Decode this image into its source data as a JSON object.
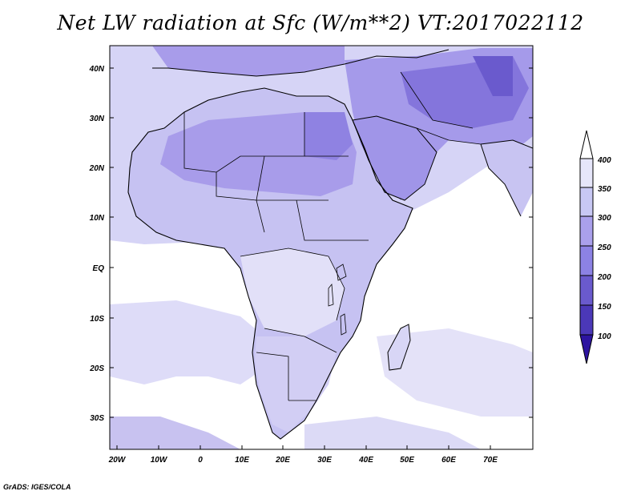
{
  "title": "Net LW radiation at Sfc (W/m**2) VT:2017022112",
  "credit": "GrADS: IGES/COLA",
  "x_axis": {
    "labels": [
      "20W",
      "10W",
      "0",
      "10E",
      "20E",
      "30E",
      "40E",
      "50E",
      "60E",
      "70E"
    ]
  },
  "y_axis": {
    "labels": [
      "40N",
      "30N",
      "20N",
      "10N",
      "EQ",
      "10S",
      "20S",
      "30S"
    ]
  },
  "colorbar": {
    "labels": [
      "400",
      "350",
      "300",
      "250",
      "200",
      "150",
      "100"
    ],
    "colors": [
      "#ffffff",
      "#e6e6fa",
      "#c8c8f4",
      "#aaa0ec",
      "#8c82e4",
      "#6a5acd",
      "#4b38b8",
      "#2d14a0"
    ]
  },
  "colors": {
    "ocean": "#ffffff",
    "level_350_400": "#dcdcf8",
    "level_300_350": "#c4c0f2",
    "level_250_300": "#a89ceb",
    "level_200_250": "#8c7ee0"
  }
}
